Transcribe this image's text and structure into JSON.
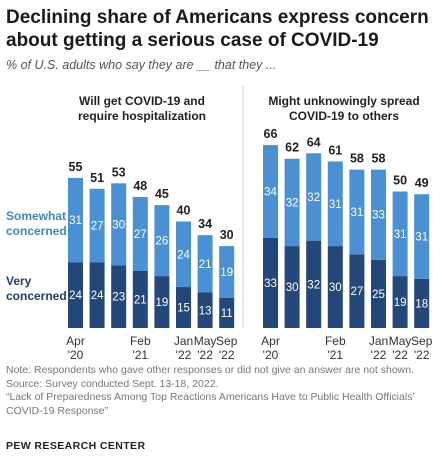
{
  "title": "Declining share of Americans express concern about getting a serious case of COVID-19",
  "subtitle": "% of U.S. adults who say they are __ that they ...",
  "colors": {
    "very": "#24477a",
    "somewhat": "#4a90d2",
    "legend_somewhat": "#3d86c6",
    "legend_very": "#1f3e6e",
    "divider": "#cccccc"
  },
  "legend": {
    "somewhat_line1": "Somewhat",
    "somewhat_line2": "concerned",
    "very_line1": "Very",
    "very_line2": "concerned"
  },
  "chart_data": [
    {
      "type": "bar",
      "stacked": true,
      "title_line1": "Will get COVID-19 and",
      "title_line2": "require hospitalization",
      "series": [
        {
          "name": "Very concerned",
          "values": [
            24,
            24,
            23,
            21,
            19,
            15,
            13,
            11
          ]
        },
        {
          "name": "Somewhat concerned",
          "values": [
            31,
            27,
            30,
            27,
            26,
            24,
            21,
            19
          ]
        }
      ],
      "totals": [
        55,
        51,
        53,
        48,
        45,
        40,
        34,
        30
      ],
      "tick_labels": [
        {
          "top": "Apr",
          "bottom": "'20",
          "index": 0
        },
        {
          "top": "Feb",
          "bottom": "'21",
          "index": 3
        },
        {
          "top": "Jan",
          "bottom": "'22",
          "index": 5
        },
        {
          "top": "May",
          "bottom": "'22",
          "index": 6
        },
        {
          "top": "Sep",
          "bottom": "'22",
          "index": 7
        }
      ]
    },
    {
      "type": "bar",
      "stacked": true,
      "title_line1": "Might unknowingly spread",
      "title_line2": "COVID-19 to others",
      "series": [
        {
          "name": "Very concerned",
          "values": [
            33,
            30,
            32,
            30,
            27,
            25,
            19,
            18
          ]
        },
        {
          "name": "Somewhat concerned",
          "values": [
            34,
            32,
            32,
            31,
            31,
            33,
            31,
            31
          ]
        }
      ],
      "totals": [
        66,
        62,
        64,
        61,
        58,
        58,
        50,
        49
      ],
      "tick_labels": [
        {
          "top": "Apr",
          "bottom": "'20",
          "index": 0
        },
        {
          "top": "Feb",
          "bottom": "'21",
          "index": 3
        },
        {
          "top": "Jan",
          "bottom": "'22",
          "index": 5
        },
        {
          "top": "May",
          "bottom": "'22",
          "index": 6
        },
        {
          "top": "Sep",
          "bottom": "'22",
          "index": 7
        }
      ]
    }
  ],
  "notes": {
    "note": "Note: Respondents who gave other responses or did not give an answer are not shown.",
    "source": "Source: Survey conducted Sept. 13-18, 2022.",
    "report_line1": "“Lack of Preparedness Among Top Reactions Americans Have to Public Health Officials’",
    "report_line2": "COVID-19 Response”"
  },
  "org": "PEW RESEARCH CENTER"
}
